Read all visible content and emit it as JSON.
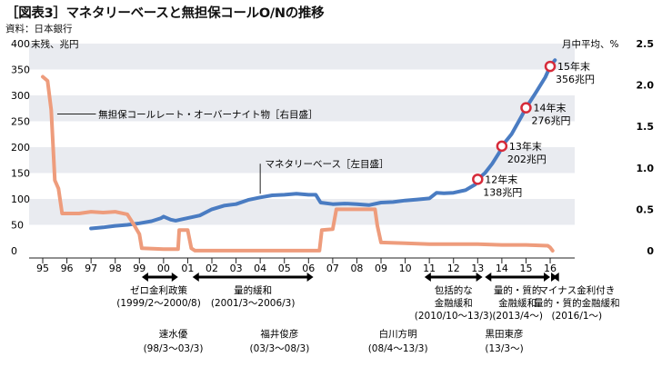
{
  "header": {
    "title": "［図表3］マネタリーベースと無担保コールO/Nの推移",
    "source": "資料：日本銀行"
  },
  "chart_data": {
    "type": "line",
    "left_axis": {
      "unit": "末残、兆円",
      "ticks": [
        0,
        50,
        100,
        150,
        200,
        250,
        300,
        350,
        400
      ]
    },
    "right_axis": {
      "unit": "月中平均、%",
      "ticks": [
        "0",
        "0.5",
        "1.0",
        "1.5",
        "2.0",
        "2.5"
      ],
      "range": [
        0,
        2.5
      ]
    },
    "x_ticks": [
      "95",
      "96",
      "97",
      "98",
      "99",
      "00",
      "01",
      "02",
      "03",
      "04",
      "05",
      "06",
      "07",
      "08",
      "09",
      "10",
      "11",
      "12",
      "13",
      "14",
      "15",
      "16"
    ],
    "x_range": [
      1995.0,
      2016.3
    ],
    "ylim": [
      0,
      400
    ],
    "series": [
      {
        "name": "マネタリーベース［左目盛］",
        "axis": "left",
        "color": "#4a7cc2",
        "values": [
          [
            1997.0,
            43
          ],
          [
            1997.5,
            45
          ],
          [
            1998.0,
            48
          ],
          [
            1998.5,
            50
          ],
          [
            1999.0,
            53
          ],
          [
            1999.5,
            57
          ],
          [
            1999.9,
            63
          ],
          [
            2000.0,
            66
          ],
          [
            2000.3,
            60
          ],
          [
            2000.5,
            58
          ],
          [
            2000.8,
            61
          ],
          [
            2001.0,
            63
          ],
          [
            2001.5,
            68
          ],
          [
            2002.0,
            80
          ],
          [
            2002.5,
            87
          ],
          [
            2003.0,
            90
          ],
          [
            2003.5,
            98
          ],
          [
            2004.0,
            103
          ],
          [
            2004.5,
            107
          ],
          [
            2005.0,
            108
          ],
          [
            2005.5,
            110
          ],
          [
            2006.0,
            108
          ],
          [
            2006.3,
            108
          ],
          [
            2006.5,
            93
          ],
          [
            2007.0,
            90
          ],
          [
            2007.5,
            91
          ],
          [
            2008.0,
            90
          ],
          [
            2008.5,
            88
          ],
          [
            2009.0,
            93
          ],
          [
            2009.5,
            94
          ],
          [
            2010.0,
            97
          ],
          [
            2010.5,
            99
          ],
          [
            2011.0,
            101
          ],
          [
            2011.3,
            112
          ],
          [
            2011.6,
            111
          ],
          [
            2012.0,
            112
          ],
          [
            2012.5,
            117
          ],
          [
            2012.9,
            128
          ],
          [
            2013.0,
            138
          ],
          [
            2013.3,
            150
          ],
          [
            2013.6,
            168
          ],
          [
            2013.9,
            190
          ],
          [
            2014.0,
            202
          ],
          [
            2014.4,
            225
          ],
          [
            2014.8,
            258
          ],
          [
            2015.0,
            276
          ],
          [
            2015.4,
            305
          ],
          [
            2015.8,
            335
          ],
          [
            2016.0,
            356
          ],
          [
            2016.2,
            368
          ]
        ]
      },
      {
        "name": "無担保コールレート・オーバーナイト物［右目盛］",
        "axis": "right",
        "color": "#ee9c7c",
        "values": [
          [
            1995.0,
            2.1
          ],
          [
            1995.2,
            2.05
          ],
          [
            1995.35,
            1.7
          ],
          [
            1995.5,
            0.85
          ],
          [
            1995.65,
            0.75
          ],
          [
            1995.8,
            0.45
          ],
          [
            1996.0,
            0.45
          ],
          [
            1996.5,
            0.45
          ],
          [
            1997.0,
            0.47
          ],
          [
            1997.5,
            0.46
          ],
          [
            1998.0,
            0.47
          ],
          [
            1998.5,
            0.44
          ],
          [
            1998.8,
            0.3
          ],
          [
            1999.0,
            0.2
          ],
          [
            1999.1,
            0.03
          ],
          [
            2000.0,
            0.02
          ],
          [
            2000.6,
            0.02
          ],
          [
            2000.65,
            0.25
          ],
          [
            2001.0,
            0.25
          ],
          [
            2001.15,
            0.03
          ],
          [
            2001.3,
            0.001
          ],
          [
            2002.0,
            0.001
          ],
          [
            2004.0,
            0.001
          ],
          [
            2006.0,
            0.001
          ],
          [
            2006.45,
            0.001
          ],
          [
            2006.55,
            0.25
          ],
          [
            2007.0,
            0.26
          ],
          [
            2007.15,
            0.5
          ],
          [
            2008.0,
            0.5
          ],
          [
            2008.75,
            0.5
          ],
          [
            2008.85,
            0.3
          ],
          [
            2009.0,
            0.1
          ],
          [
            2010.0,
            0.09
          ],
          [
            2011.0,
            0.08
          ],
          [
            2012.0,
            0.08
          ],
          [
            2013.0,
            0.08
          ],
          [
            2014.0,
            0.07
          ],
          [
            2015.0,
            0.07
          ],
          [
            2015.9,
            0.06
          ],
          [
            2016.0,
            0.04
          ],
          [
            2016.1,
            0.0
          ]
        ]
      }
    ],
    "annotations": [
      {
        "x": 2013.0,
        "y": 138,
        "line1": "12年末",
        "line2": "138兆円"
      },
      {
        "x": 2014.0,
        "y": 202,
        "line1": "13年末",
        "line2": "202兆円"
      },
      {
        "x": 2015.0,
        "y": 276,
        "line1": "14年末",
        "line2": "276兆円"
      },
      {
        "x": 2016.0,
        "y": 356,
        "line1": "15年末",
        "line2": "356兆円"
      }
    ],
    "policies": [
      {
        "from": 1999.1,
        "to": 2000.6,
        "label": [
          "ゼロ金利政策",
          "(1999/2〜2000/8)"
        ]
      },
      {
        "from": 2001.2,
        "to": 2006.2,
        "label": [
          "量的緩和",
          "(2001/3〜2006/3)"
        ]
      },
      {
        "from": 2010.8,
        "to": 2013.2,
        "label": [
          "包括的な",
          "金融緩和",
          "(2010/10〜13/3)"
        ]
      },
      {
        "from": 2013.3,
        "to": 2016.0,
        "label": [
          "量的・質的",
          "金融緩和",
          "(2013/4〜)"
        ]
      },
      {
        "from": 2016.1,
        "to": 2016.3,
        "label": [
          "マイナス金利付き",
          "量的・質的金融緩和",
          "(2016/1〜)"
        ]
      }
    ],
    "governors": [
      {
        "name": "速水優",
        "term": "(98/3〜03/3)"
      },
      {
        "name": "福井俊彦",
        "term": "(03/3〜08/3)"
      },
      {
        "name": "白川方明",
        "term": "(08/4〜13/3)"
      },
      {
        "name": "黒田東彦",
        "term": "(13/3〜)"
      }
    ]
  }
}
